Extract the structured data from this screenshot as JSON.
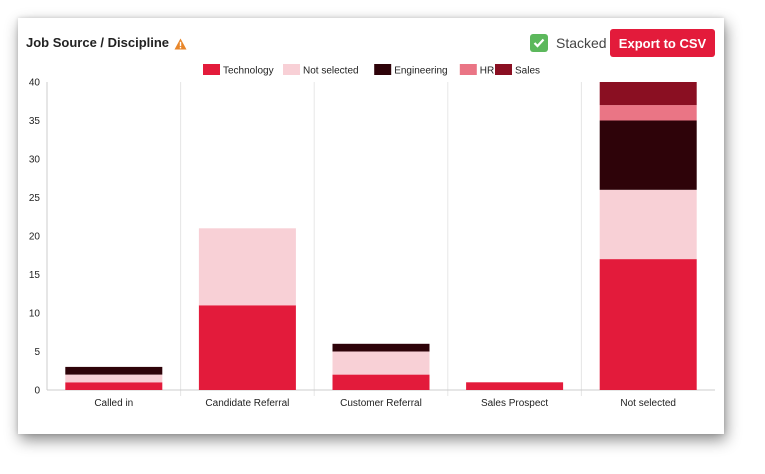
{
  "header": {
    "title": "Job Source / Discipline",
    "stacked_label": "Stacked",
    "stacked_checked": true,
    "export_label": "Export to CSV",
    "warning_icon": "warning-icon",
    "accent_color": "#e31b3b"
  },
  "chart_data": {
    "type": "bar",
    "stacked": true,
    "categories": [
      "Called in",
      "Candidate Referral",
      "Customer Referral",
      "Sales Prospect",
      "Not selected"
    ],
    "series": [
      {
        "name": "Technology",
        "color": "#e31b3b",
        "values": [
          1,
          11,
          2,
          1,
          17
        ]
      },
      {
        "name": "Not selected",
        "color": "#f8d0d6",
        "values": [
          1,
          10,
          3,
          0,
          9
        ]
      },
      {
        "name": "Engineering",
        "color": "#2e0309",
        "values": [
          1,
          0,
          1,
          0,
          9
        ]
      },
      {
        "name": "HR",
        "color": "#ea7585",
        "values": [
          0,
          0,
          0,
          0,
          2
        ]
      },
      {
        "name": "Sales",
        "color": "#8a0f22",
        "values": [
          0,
          0,
          0,
          0,
          3
        ]
      }
    ],
    "ylim": [
      0,
      40
    ],
    "yticks": [
      0,
      5,
      10,
      15,
      20,
      25,
      30,
      35,
      40
    ],
    "legend_position": "top-center",
    "grid": "vertical category separators"
  }
}
